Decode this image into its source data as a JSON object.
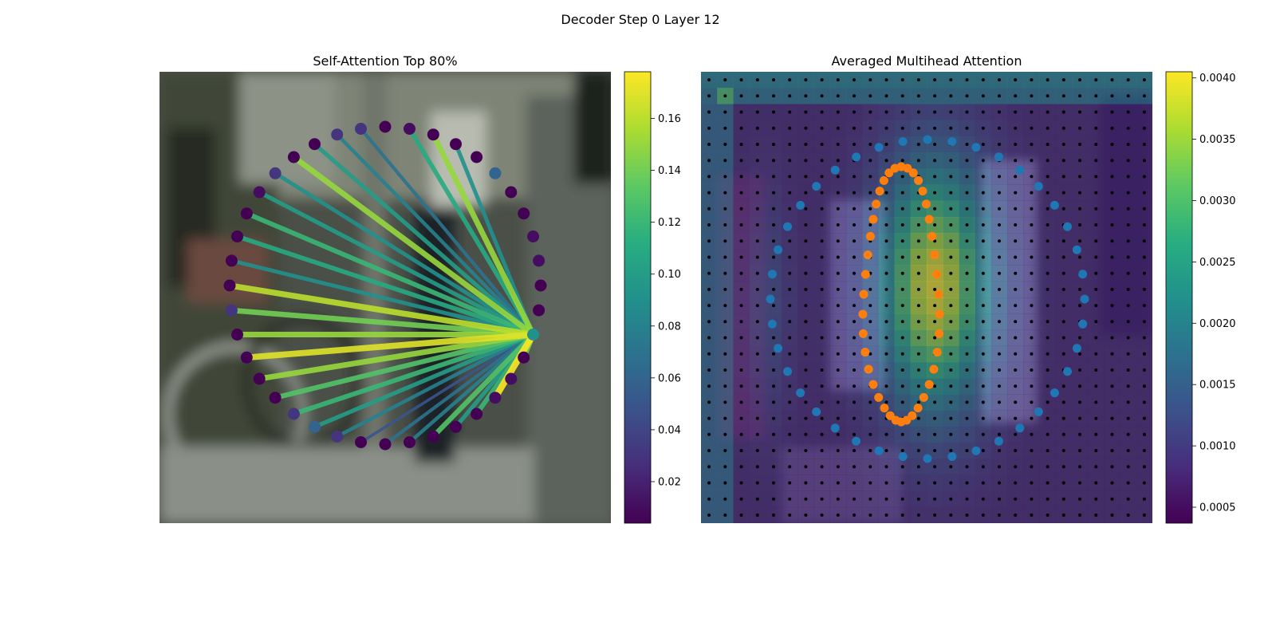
{
  "figure_title": "Decoder Step 0 Layer 12",
  "colormap": [
    "#440154",
    "#472d7b",
    "#3b528b",
    "#2c728e",
    "#21918c",
    "#28ae80",
    "#5ec962",
    "#addc30",
    "#fde725"
  ],
  "colors": {
    "inner_points": "#ff7f0e",
    "outer_points": "#1f77b4",
    "grid_dots": "#000000"
  },
  "chart_data": [
    {
      "type": "scatter",
      "title": "Self-Attention Top 80%",
      "description_keys": "contour points on ellipse with attention edges from a query point",
      "query_point_index": 12,
      "num_points": 40,
      "point_values": [
        0.004,
        0.01,
        0.004,
        0.004,
        0.004,
        0.06,
        0.004,
        0.004,
        0.01,
        0.01,
        0.004,
        0.004,
        0.09,
        0.004,
        0.01,
        0.01,
        0.004,
        0.004,
        0.004,
        0.004,
        0.004,
        0.004,
        0.03,
        0.06,
        0.03,
        0.004,
        0.004,
        0.004,
        0.004,
        0.03,
        0.004,
        0.004,
        0.004,
        0.004,
        0.01,
        0.03,
        0.004,
        0.004,
        0.03,
        0.03
      ],
      "edge_targets": [
        1,
        2,
        3,
        13,
        15,
        16,
        17,
        18,
        19,
        20,
        21,
        22,
        23,
        24,
        25,
        26,
        27,
        28,
        29,
        30,
        31,
        32,
        33,
        34,
        35,
        36,
        37,
        38,
        39
      ],
      "edge_weights": [
        0.11,
        0.15,
        0.09,
        0.14,
        0.18,
        0.12,
        0.1,
        0.13,
        0.08,
        0.07,
        0.05,
        0.08,
        0.1,
        0.12,
        0.13,
        0.15,
        0.17,
        0.15,
        0.14,
        0.16,
        0.09,
        0.11,
        0.12,
        0.1,
        0.09,
        0.15,
        0.1,
        0.08,
        0.07
      ],
      "colorbar": {
        "min": 0.004,
        "max": 0.178,
        "ticks": [
          "0.02",
          "0.04",
          "0.06",
          "0.08",
          "0.10",
          "0.12",
          "0.14",
          "0.16"
        ],
        "tick_values": [
          0.02,
          0.04,
          0.06,
          0.08,
          0.1,
          0.12,
          0.14,
          0.16
        ]
      }
    },
    {
      "type": "heatmap",
      "title": "Averaged Multihead Attention",
      "grid_size": 28,
      "colorbar": {
        "min": 0.00037,
        "max": 0.00405,
        "ticks": [
          "0.0005",
          "0.0010",
          "0.0015",
          "0.0020",
          "0.0025",
          "0.0030",
          "0.0035",
          "0.0040"
        ],
        "tick_values": [
          0.0005,
          0.001,
          0.0015,
          0.002,
          0.0025,
          0.003,
          0.0035,
          0.004
        ]
      },
      "series": [
        {
          "marker": "orange",
          "num_points": 40,
          "shape": "inner contour"
        },
        {
          "marker": "blue",
          "num_points": 40,
          "shape": "outer contour"
        }
      ]
    }
  ]
}
